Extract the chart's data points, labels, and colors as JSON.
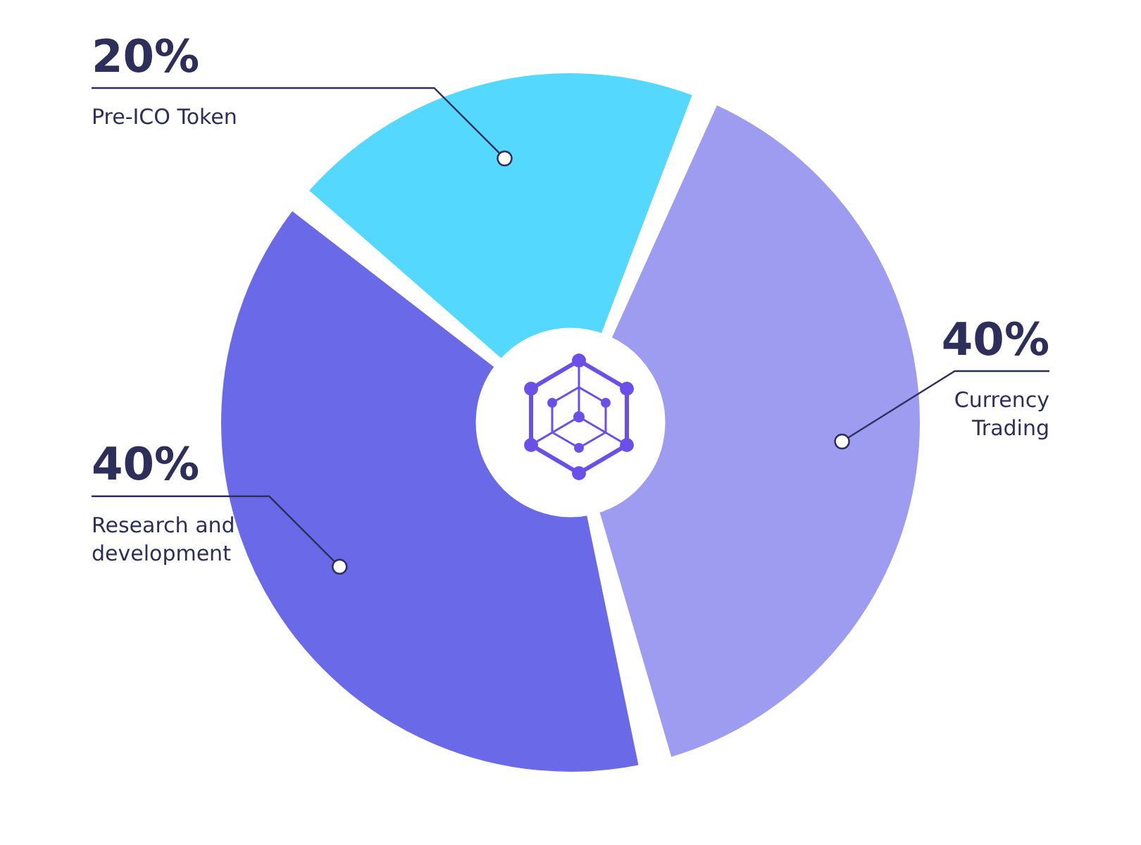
{
  "chart_data": {
    "type": "donut",
    "categories": [
      "Currency Trading",
      "Research and development",
      "Pre-ICO Token"
    ],
    "values": [
      40,
      40,
      20
    ],
    "colors": [
      "#9d9cf0",
      "#6a6ae8",
      "#55d8fe"
    ],
    "value_labels": [
      "40%",
      "40%",
      "20%"
    ],
    "legend": false
  }
}
